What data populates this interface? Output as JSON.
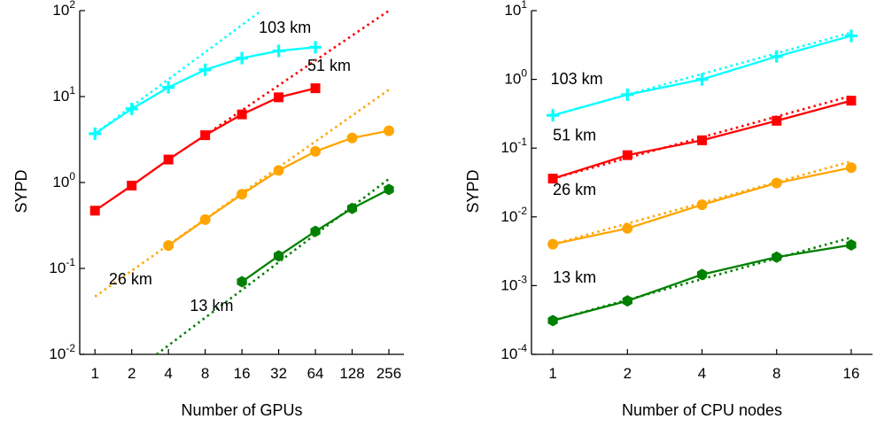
{
  "chart_data": [
    {
      "type": "line",
      "scale": {
        "x": "log2",
        "y": "log10"
      },
      "xlabel": "Number of GPUs",
      "ylabel": "SYPD",
      "xticks": [
        1,
        2,
        4,
        8,
        16,
        32,
        64,
        128,
        256
      ],
      "xtick_labels": [
        "1",
        "2",
        "4",
        "8",
        "16",
        "32",
        "64",
        "128",
        "256"
      ],
      "xlim": [
        0.75,
        340
      ],
      "ylim": [
        0.01,
        100
      ],
      "yticks": [
        {
          "value": 0.01,
          "base": "10",
          "exp": "-2"
        },
        {
          "value": 0.1,
          "base": "10",
          "exp": "-1"
        },
        {
          "value": 1,
          "base": "10",
          "exp": "0"
        },
        {
          "value": 10,
          "base": "10",
          "exp": "1"
        },
        {
          "value": 100,
          "base": "10",
          "exp": "2"
        }
      ],
      "grid": false,
      "series": [
        {
          "label": "103 km",
          "color": "#00ffff",
          "marker": "plus",
          "label_at": [
            22,
            55
          ],
          "x": [
            1,
            2,
            4,
            8,
            16,
            32,
            64
          ],
          "y": [
            3.7,
            7.2,
            12.8,
            20.5,
            28,
            34,
            37.5
          ],
          "ideal": {
            "x": [
              1,
              22
            ],
            "y": [
              3.7,
              95
            ]
          }
        },
        {
          "label": "51 km",
          "color": "#ff0000",
          "marker": "square",
          "label_at": [
            55,
            20
          ],
          "x": [
            1,
            2,
            4,
            8,
            16,
            32,
            64
          ],
          "y": [
            0.47,
            0.92,
            1.85,
            3.55,
            6.2,
            9.8,
            12.5
          ],
          "ideal": {
            "x": [
              8,
              256
            ],
            "y": [
              3.55,
              100
            ]
          }
        },
        {
          "label": "26 km",
          "color": "#ffa500",
          "marker": "circle",
          "label_at": [
            1.3,
            0.065
          ],
          "x": [
            4,
            8,
            16,
            32,
            64,
            128,
            256
          ],
          "y": [
            0.185,
            0.37,
            0.73,
            1.38,
            2.3,
            3.3,
            4.0
          ],
          "ideal": {
            "x": [
              1,
              256
            ],
            "y": [
              0.047,
              12
            ]
          }
        },
        {
          "label": "13 km",
          "color": "#008000",
          "marker": "hexagon",
          "label_at": [
            6,
            0.032
          ],
          "x": [
            16,
            32,
            64,
            128,
            256
          ],
          "y": [
            0.07,
            0.14,
            0.27,
            0.5,
            0.83
          ],
          "ideal": {
            "x": [
              3.2,
              256
            ],
            "y": [
              0.01,
              1.1
            ]
          }
        }
      ]
    },
    {
      "type": "line",
      "scale": {
        "x": "log2",
        "y": "log10"
      },
      "xlabel": "Number of CPU nodes",
      "ylabel": "SYPD",
      "xticks": [
        1,
        2,
        4,
        8,
        16
      ],
      "xtick_labels": [
        "1",
        "2",
        "4",
        "8",
        "16"
      ],
      "xlim": [
        0.82,
        19.5
      ],
      "ylim": [
        0.0001,
        10
      ],
      "yticks": [
        {
          "value": 0.0001,
          "base": "10",
          "exp": "-4"
        },
        {
          "value": 0.001,
          "base": "10",
          "exp": "-3"
        },
        {
          "value": 0.01,
          "base": "10",
          "exp": "-2"
        },
        {
          "value": 0.1,
          "base": "10",
          "exp": "-1"
        },
        {
          "value": 1,
          "base": "10",
          "exp": "0"
        },
        {
          "value": 10,
          "base": "10",
          "exp": "1"
        }
      ],
      "grid": false,
      "series": [
        {
          "label": "103 km",
          "color": "#00ffff",
          "marker": "plus",
          "label_at": [
            0.98,
            0.85
          ],
          "x": [
            1,
            2,
            4,
            8,
            16
          ],
          "y": [
            0.3,
            0.6,
            1.0,
            2.15,
            4.3
          ],
          "ideal": {
            "x": [
              1,
              16
            ],
            "y": [
              0.3,
              4.8
            ]
          }
        },
        {
          "label": "51 km",
          "color": "#ff0000",
          "marker": "square",
          "label_at": [
            1.0,
            0.13
          ],
          "x": [
            1,
            2,
            4,
            8,
            16
          ],
          "y": [
            0.036,
            0.079,
            0.13,
            0.25,
            0.49
          ],
          "ideal": {
            "x": [
              1,
              16
            ],
            "y": [
              0.036,
              0.575
            ]
          }
        },
        {
          "label": "26 km",
          "color": "#ffa500",
          "marker": "circle",
          "label_at": [
            1.0,
            0.021
          ],
          "x": [
            1,
            2,
            4,
            8,
            16
          ],
          "y": [
            0.004,
            0.0068,
            0.015,
            0.031,
            0.052
          ],
          "ideal": {
            "x": [
              1,
              16
            ],
            "y": [
              0.004,
              0.064
            ]
          }
        },
        {
          "label": "13 km",
          "color": "#008000",
          "marker": "hexagon",
          "label_at": [
            1.0,
            0.0011
          ],
          "x": [
            1,
            2,
            4,
            8,
            16
          ],
          "y": [
            0.00031,
            0.0006,
            0.00145,
            0.0026,
            0.0039
          ],
          "ideal": {
            "x": [
              1,
              16
            ],
            "y": [
              0.00031,
              0.005
            ]
          }
        }
      ]
    }
  ]
}
